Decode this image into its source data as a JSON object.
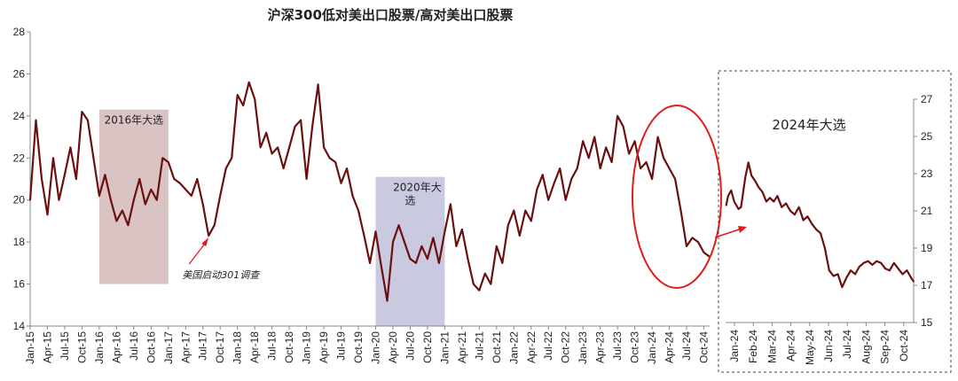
{
  "chart_data": [
    {
      "type": "line",
      "title": "沪深300低对美出口股票/高对美出口股票",
      "ylim": [
        14,
        28
      ],
      "yticks": [
        14,
        16,
        18,
        20,
        22,
        24,
        26,
        28
      ],
      "x_tick_labels": [
        "Jan-15",
        "Apr-15",
        "Jul-15",
        "Oct-15",
        "Jan-16",
        "Apr-16",
        "Jul-16",
        "Oct-16",
        "Jan-17",
        "Apr-17",
        "Jul-17",
        "Oct-17",
        "Jan-18",
        "Apr-18",
        "Jul-18",
        "Oct-18",
        "Jan-19",
        "Apr-19",
        "Jul-19",
        "Oct-19",
        "Jan-20",
        "Apr-20",
        "Jul-20",
        "Oct-20",
        "Jan-21",
        "Apr-21",
        "Jul-21",
        "Oct-21",
        "Jan-22",
        "Apr-22",
        "Jul-22",
        "Oct-22",
        "Jan-23",
        "Apr-23",
        "Jul-23",
        "Oct-23",
        "Jan-24",
        "Apr-24",
        "Jul-24",
        "Oct-24"
      ],
      "series_color": "#6b0f0f",
      "series": [
        {
          "x": [
            "2015-01",
            "2015-02",
            "2015-03",
            "2015-04",
            "2015-05",
            "2015-06",
            "2015-07",
            "2015-08",
            "2015-09",
            "2015-10",
            "2015-11",
            "2015-12",
            "2016-01",
            "2016-02",
            "2016-03",
            "2016-04",
            "2016-05",
            "2016-06",
            "2016-07",
            "2016-08",
            "2016-09",
            "2016-10",
            "2016-11",
            "2016-12",
            "2017-01",
            "2017-02",
            "2017-03",
            "2017-04",
            "2017-05",
            "2017-06",
            "2017-07",
            "2017-08",
            "2017-09",
            "2017-10",
            "2017-11",
            "2017-12",
            "2018-01",
            "2018-02",
            "2018-03",
            "2018-04",
            "2018-05",
            "2018-06",
            "2018-07",
            "2018-08",
            "2018-09",
            "2018-10",
            "2018-11",
            "2018-12",
            "2019-01",
            "2019-02",
            "2019-03",
            "2019-04",
            "2019-05",
            "2019-06",
            "2019-07",
            "2019-08",
            "2019-09",
            "2019-10",
            "2019-11",
            "2019-12",
            "2020-01",
            "2020-02",
            "2020-03",
            "2020-04",
            "2020-05",
            "2020-06",
            "2020-07",
            "2020-08",
            "2020-09",
            "2020-10",
            "2020-11",
            "2020-12",
            "2021-01",
            "2021-02",
            "2021-03",
            "2021-04",
            "2021-05",
            "2021-06",
            "2021-07",
            "2021-08",
            "2021-09",
            "2021-10",
            "2021-11",
            "2021-12",
            "2022-01",
            "2022-02",
            "2022-03",
            "2022-04",
            "2022-05",
            "2022-06",
            "2022-07",
            "2022-08",
            "2022-09",
            "2022-10",
            "2022-11",
            "2022-12",
            "2023-01",
            "2023-02",
            "2023-03",
            "2023-04",
            "2023-05",
            "2023-06",
            "2023-07",
            "2023-08",
            "2023-09",
            "2023-10",
            "2023-11",
            "2023-12",
            "2024-01",
            "2024-02",
            "2024-03",
            "2024-04",
            "2024-05",
            "2024-06",
            "2024-07",
            "2024-08",
            "2024-09",
            "2024-10",
            "2024-11"
          ],
          "values": [
            20.0,
            23.8,
            21.0,
            19.3,
            22.0,
            20.0,
            21.2,
            22.5,
            21.0,
            24.2,
            23.8,
            22.0,
            20.2,
            21.2,
            20.0,
            19.0,
            19.5,
            18.8,
            20.0,
            21.0,
            19.8,
            20.5,
            20.0,
            22.0,
            21.8,
            21.0,
            20.8,
            20.5,
            20.2,
            21.0,
            19.8,
            18.3,
            18.8,
            20.2,
            21.5,
            22.0,
            25.0,
            24.5,
            25.6,
            24.8,
            22.5,
            23.2,
            22.2,
            22.5,
            21.5,
            22.5,
            23.5,
            23.8,
            21.0,
            23.5,
            25.5,
            22.5,
            22.0,
            21.8,
            20.8,
            21.5,
            20.2,
            19.5,
            18.3,
            17.0,
            18.5,
            16.8,
            15.2,
            18.0,
            18.8,
            18.0,
            17.2,
            17.0,
            17.8,
            17.2,
            18.2,
            17.0,
            18.5,
            19.8,
            17.8,
            18.6,
            17.2,
            16.0,
            15.7,
            16.5,
            16.0,
            17.8,
            17.0,
            18.8,
            19.5,
            18.3,
            19.5,
            19.0,
            20.5,
            21.2,
            20.0,
            20.8,
            21.5,
            20.0,
            21.0,
            21.5,
            22.8,
            22.0,
            23.0,
            21.5,
            22.5,
            21.8,
            24.0,
            23.5,
            22.2,
            22.8,
            21.5,
            21.8,
            21.0,
            23.0,
            22.0,
            21.5,
            21.0,
            19.5,
            17.8,
            18.2,
            18.0,
            17.5,
            17.3
          ]
        }
      ],
      "annotations": [
        {
          "label": "2016年大选",
          "from": "2016-01",
          "to": "2016-12",
          "ylim": [
            16,
            24.3
          ],
          "color": "#d9c3c3"
        },
        {
          "label": "2020年大选",
          "from": "2020-01",
          "to": "2020-12",
          "ylim": [
            14,
            21.1
          ],
          "color": "#c9c9e0"
        },
        {
          "label": "美国启动301调查",
          "at": "2017-08"
        }
      ]
    },
    {
      "type": "line",
      "title": "2024年大选",
      "ylim": [
        15,
        27
      ],
      "yticks": [
        15,
        17,
        19,
        21,
        23,
        25,
        27
      ],
      "x_tick_labels": [
        "Jan-24",
        "Feb-24",
        "Mar-24",
        "Apr-24",
        "May-24",
        "Jun-24",
        "Jul-24",
        "Aug-24",
        "Sep-24",
        "Oct-24"
      ],
      "series": [
        {
          "x": [
            "2024-01-02",
            "2024-01-05",
            "2024-01-10",
            "2024-01-15",
            "2024-01-22",
            "2024-01-26",
            "2024-02-02",
            "2024-02-07",
            "2024-02-12",
            "2024-02-18",
            "2024-02-23",
            "2024-03-01",
            "2024-03-07",
            "2024-03-13",
            "2024-03-19",
            "2024-03-25",
            "2024-04-01",
            "2024-04-08",
            "2024-04-15",
            "2024-04-22",
            "2024-04-29",
            "2024-05-06",
            "2024-05-13",
            "2024-05-20",
            "2024-05-27",
            "2024-06-03",
            "2024-06-10",
            "2024-06-17",
            "2024-06-24",
            "2024-07-01",
            "2024-07-08",
            "2024-07-15",
            "2024-07-22",
            "2024-07-29",
            "2024-08-05",
            "2024-08-12",
            "2024-08-19",
            "2024-08-26",
            "2024-09-02",
            "2024-09-09",
            "2024-09-16",
            "2024-09-23",
            "2024-09-30",
            "2024-10-07",
            "2024-10-14",
            "2024-10-21",
            "2024-10-28",
            "2024-11-01"
          ],
          "values": [
            21.3,
            21.8,
            22.1,
            21.5,
            21.1,
            21.2,
            22.8,
            23.6,
            22.9,
            22.6,
            22.3,
            22.0,
            21.5,
            21.7,
            21.5,
            21.8,
            21.2,
            21.4,
            21.0,
            20.8,
            21.2,
            20.5,
            20.7,
            20.3,
            20.0,
            19.8,
            19.0,
            17.8,
            17.5,
            17.6,
            16.9,
            17.4,
            17.8,
            17.6,
            18.0,
            18.2,
            18.3,
            18.1,
            18.3,
            18.2,
            17.9,
            17.8,
            18.2,
            17.9,
            17.6,
            17.8,
            17.4,
            17.2
          ]
        }
      ]
    }
  ]
}
